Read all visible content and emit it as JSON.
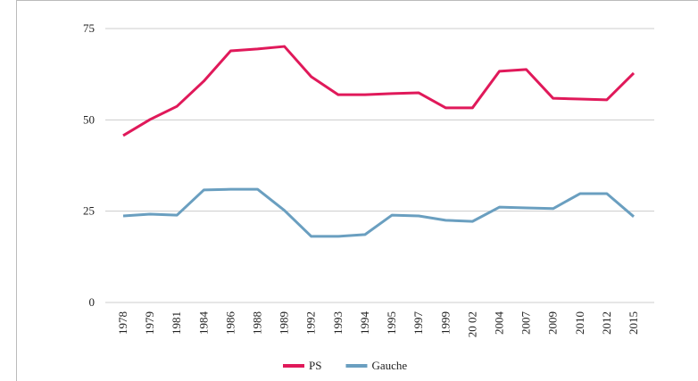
{
  "chart_data": {
    "type": "line",
    "categories": [
      "1978",
      "1979",
      "1981",
      "1984",
      "1986",
      "1988",
      "1989",
      "1992",
      "1993",
      "1994",
      "1995",
      "1997",
      "1999",
      "20 02",
      "2004",
      "2007",
      "2009",
      "2010",
      "2012",
      "2015"
    ],
    "series": [
      {
        "name": "PS",
        "color": "#e0195a",
        "values": [
          45.7,
          50.1,
          53.7,
          60.6,
          68.9,
          69.4,
          70.1,
          61.8,
          56.9,
          56.9,
          57.2,
          57.4,
          53.3,
          53.3,
          63.3,
          63.8,
          55.9,
          55.7,
          55.5,
          62.8
        ]
      },
      {
        "name": "Gauche",
        "color": "#6a9fc0",
        "values": [
          23.7,
          24.2,
          23.9,
          30.8,
          31.0,
          31.0,
          25.2,
          18.1,
          18.1,
          18.6,
          23.9,
          23.7,
          22.5,
          22.2,
          26.1,
          25.9,
          25.7,
          29.8,
          29.8,
          23.5
        ]
      }
    ],
    "ylim": [
      0,
      75
    ],
    "yticks": [
      0,
      25,
      50,
      75
    ],
    "grid": true,
    "legend": "bottom"
  }
}
